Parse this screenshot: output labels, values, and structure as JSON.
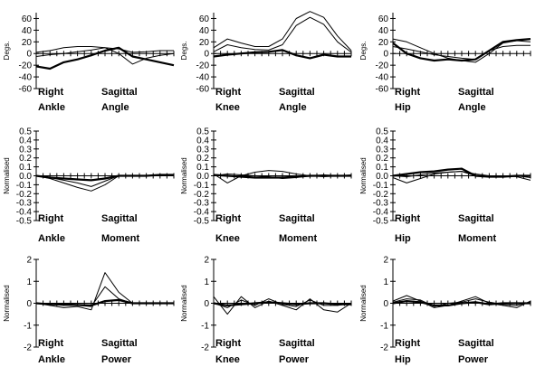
{
  "colors": {
    "background": "#ffffff",
    "line": "#000000"
  },
  "chart_data": [
    {
      "type": "line",
      "ylabel": "Degs.",
      "ylim": [
        -60,
        70
      ],
      "yticks": [
        "60",
        "40",
        "20",
        "0",
        "-20",
        "-40",
        "-60"
      ],
      "ytick_values": [
        60,
        40,
        20,
        0,
        -20,
        -40,
        -60
      ],
      "caption": [
        "Right",
        "Sagittal",
        "Ankle",
        "Angle"
      ],
      "x": [
        0,
        10,
        20,
        30,
        40,
        50,
        60,
        70,
        80,
        90,
        100
      ],
      "series": [
        {
          "values": [
            -22,
            -26,
            -15,
            -10,
            -3,
            5,
            10,
            -5,
            -10,
            -15,
            -20
          ],
          "weight": "bold"
        },
        {
          "values": [
            2,
            5,
            10,
            12,
            12,
            10,
            0,
            -18,
            -8,
            -3,
            0
          ],
          "weight": "thin"
        },
        {
          "values": [
            -5,
            -2,
            0,
            3,
            6,
            10,
            8,
            2,
            3,
            5,
            5
          ],
          "weight": "thin"
        }
      ]
    },
    {
      "type": "line",
      "ylabel": "Degs.",
      "ylim": [
        -60,
        70
      ],
      "yticks": [
        "60",
        "40",
        "20",
        "0",
        "-20",
        "-40",
        "-60"
      ],
      "ytick_values": [
        60,
        40,
        20,
        0,
        -20,
        -40,
        -60
      ],
      "caption": [
        "Right",
        "Sagittal",
        "Knee",
        "Angle"
      ],
      "x": [
        0,
        10,
        20,
        30,
        40,
        50,
        60,
        70,
        80,
        90,
        100
      ],
      "series": [
        {
          "values": [
            -5,
            -2,
            0,
            2,
            3,
            6,
            -3,
            -8,
            -2,
            -5,
            -5
          ],
          "weight": "bold"
        },
        {
          "values": [
            10,
            25,
            18,
            12,
            12,
            25,
            60,
            72,
            62,
            30,
            5
          ],
          "weight": "thin"
        },
        {
          "values": [
            3,
            15,
            10,
            7,
            6,
            15,
            48,
            62,
            50,
            20,
            2
          ],
          "weight": "thin"
        }
      ]
    },
    {
      "type": "line",
      "ylabel": "Degs.",
      "ylim": [
        -60,
        70
      ],
      "yticks": [
        "60",
        "40",
        "20",
        "0",
        "-20",
        "-40",
        "-60"
      ],
      "ytick_values": [
        60,
        40,
        20,
        0,
        -20,
        -40,
        -60
      ],
      "caption": [
        "Right",
        "Sagittal",
        "Hip",
        "Angle"
      ],
      "x": [
        0,
        10,
        20,
        30,
        40,
        50,
        60,
        70,
        80,
        90,
        100
      ],
      "series": [
        {
          "values": [
            18,
            0,
            -8,
            -12,
            -10,
            -12,
            -10,
            5,
            20,
            23,
            25
          ],
          "weight": "bold"
        },
        {
          "values": [
            25,
            20,
            10,
            0,
            -8,
            -12,
            -15,
            0,
            18,
            22,
            20
          ],
          "weight": "thin"
        },
        {
          "values": [
            12,
            8,
            3,
            -2,
            -5,
            -8,
            -10,
            5,
            12,
            14,
            14
          ],
          "weight": "thin"
        }
      ]
    },
    {
      "type": "line",
      "ylabel": "Normalised",
      "ylim": [
        -0.5,
        0.5
      ],
      "yticks": [
        "0.5",
        "0.4",
        "0.3",
        "0.2",
        "0.1",
        "0.0",
        "-0.1",
        "-0.2",
        "-0.3",
        "-0.4",
        "-0.5"
      ],
      "ytick_values": [
        0.5,
        0.4,
        0.3,
        0.2,
        0.1,
        0.0,
        -0.1,
        -0.2,
        -0.3,
        -0.4,
        -0.5
      ],
      "caption": [
        "Right",
        "Sagittal",
        "Ankle",
        "Moment"
      ],
      "x": [
        0,
        10,
        20,
        30,
        40,
        50,
        60,
        70,
        80,
        90,
        100
      ],
      "series": [
        {
          "values": [
            0,
            -0.02,
            -0.03,
            -0.04,
            -0.05,
            -0.03,
            0.0,
            0.0,
            0.0,
            0.01,
            0.01
          ],
          "weight": "bold"
        },
        {
          "values": [
            0,
            -0.03,
            -0.08,
            -0.13,
            -0.17,
            -0.1,
            0.0,
            0.0,
            0.0,
            0.0,
            0.0
          ],
          "weight": "thin"
        },
        {
          "values": [
            0,
            -0.02,
            -0.05,
            -0.08,
            -0.12,
            -0.06,
            0.0,
            0.0,
            0.0,
            0.0,
            0.0
          ],
          "weight": "thin"
        }
      ]
    },
    {
      "type": "line",
      "ylabel": "Normalised",
      "ylim": [
        -0.5,
        0.5
      ],
      "yticks": [
        "0.5",
        "0.4",
        "0.3",
        "0.2",
        "0.1",
        "0.0",
        "-0.1",
        "-0.2",
        "-0.3",
        "-0.4",
        "-0.5"
      ],
      "ytick_values": [
        0.5,
        0.4,
        0.3,
        0.2,
        0.1,
        0.0,
        -0.1,
        -0.2,
        -0.3,
        -0.4,
        -0.5
      ],
      "caption": [
        "Right",
        "Sagittal",
        "Knee",
        "Moment"
      ],
      "x": [
        0,
        10,
        20,
        30,
        40,
        50,
        60,
        70,
        80,
        90,
        100
      ],
      "series": [
        {
          "values": [
            0.01,
            0.0,
            -0.01,
            -0.02,
            -0.02,
            -0.02,
            -0.01,
            0.0,
            0.0,
            0.0,
            0.0
          ],
          "weight": "bold"
        },
        {
          "values": [
            0.02,
            -0.08,
            0.0,
            0.04,
            0.06,
            0.05,
            0.02,
            0.0,
            -0.01,
            0.0,
            0.01
          ],
          "weight": "thin"
        },
        {
          "values": [
            0,
            0.02,
            0.01,
            0.0,
            -0.01,
            -0.03,
            -0.02,
            0.0,
            0.01,
            0.0,
            0.0
          ],
          "weight": "thin"
        }
      ]
    },
    {
      "type": "line",
      "ylabel": "Normalised",
      "ylim": [
        -0.5,
        0.5
      ],
      "yticks": [
        "0.5",
        "0.4",
        "0.3",
        "0.2",
        "0.1",
        "0.0",
        "-0.1",
        "-0.2",
        "-0.3",
        "-0.4",
        "-0.5"
      ],
      "ytick_values": [
        0.5,
        0.4,
        0.3,
        0.2,
        0.1,
        0.0,
        -0.1,
        -0.2,
        -0.3,
        -0.4,
        -0.5
      ],
      "caption": [
        "Right",
        "Sagittal",
        "Hip",
        "Moment"
      ],
      "x": [
        0,
        10,
        20,
        30,
        40,
        50,
        60,
        70,
        80,
        90,
        100
      ],
      "series": [
        {
          "values": [
            0.0,
            0.02,
            0.04,
            0.05,
            0.07,
            0.08,
            0.0,
            -0.01,
            -0.01,
            0.0,
            0.0
          ],
          "weight": "bold"
        },
        {
          "values": [
            -0.02,
            -0.08,
            -0.03,
            0.02,
            0.04,
            0.05,
            0.02,
            0.0,
            0.0,
            0.0,
            -0.02
          ],
          "weight": "thin"
        },
        {
          "values": [
            0.0,
            -0.01,
            0.01,
            0.03,
            0.04,
            0.05,
            0.0,
            0.0,
            0.0,
            -0.01,
            -0.05
          ],
          "weight": "thin"
        }
      ]
    },
    {
      "type": "line",
      "ylabel": "Normalised",
      "ylim": [
        -2,
        2
      ],
      "yticks": [
        "2",
        "1",
        "0",
        "-1",
        "-2"
      ],
      "ytick_values": [
        2,
        1,
        0,
        -1,
        -2
      ],
      "caption": [
        "Right",
        "Sagittal",
        "Ankle",
        "Power"
      ],
      "x": [
        0,
        10,
        20,
        30,
        40,
        50,
        60,
        70,
        80,
        90,
        100
      ],
      "series": [
        {
          "values": [
            0,
            -0.05,
            -0.05,
            -0.08,
            -0.1,
            0.1,
            0.15,
            0.0,
            0.0,
            0.0,
            0.0
          ],
          "weight": "bold"
        },
        {
          "values": [
            0,
            -0.1,
            -0.2,
            -0.15,
            -0.3,
            1.4,
            0.5,
            0.0,
            0.0,
            0.0,
            0.0
          ],
          "weight": "thin"
        },
        {
          "values": [
            0,
            -0.05,
            -0.1,
            -0.1,
            -0.15,
            0.75,
            0.2,
            0.0,
            0.0,
            0.0,
            0.0
          ],
          "weight": "thin"
        }
      ]
    },
    {
      "type": "line",
      "ylabel": "Normalised",
      "ylim": [
        -2,
        2
      ],
      "yticks": [
        "2",
        "1",
        "0",
        "-1",
        "-2"
      ],
      "ytick_values": [
        2,
        1,
        0,
        -1,
        -2
      ],
      "caption": [
        "Right",
        "Sagittal",
        "Knee",
        "Power"
      ],
      "x": [
        0,
        10,
        20,
        30,
        40,
        50,
        60,
        70,
        80,
        90,
        100
      ],
      "series": [
        {
          "values": [
            0,
            -0.1,
            -0.05,
            0.0,
            0.05,
            0.0,
            -0.05,
            0.0,
            0.0,
            -0.05,
            -0.05
          ],
          "weight": "bold"
        },
        {
          "values": [
            0.3,
            -0.5,
            0.3,
            -0.2,
            0.1,
            -0.1,
            -0.3,
            0.2,
            -0.3,
            -0.4,
            0.0
          ],
          "weight": "thin"
        },
        {
          "values": [
            0,
            -0.2,
            0.15,
            -0.1,
            0.2,
            -0.05,
            -0.15,
            0.15,
            -0.1,
            -0.1,
            0.0
          ],
          "weight": "thin"
        }
      ]
    },
    {
      "type": "line",
      "ylabel": "Normalised",
      "ylim": [
        -2,
        2
      ],
      "yticks": [
        "2",
        "1",
        "0",
        "-1",
        "-2"
      ],
      "ytick_values": [
        2,
        1,
        0,
        -1,
        -2
      ],
      "caption": [
        "Right",
        "Sagittal",
        "Hip",
        "Power"
      ],
      "x": [
        0,
        10,
        20,
        30,
        40,
        50,
        60,
        70,
        80,
        90,
        100
      ],
      "series": [
        {
          "values": [
            0,
            0.1,
            0.05,
            -0.1,
            -0.1,
            0.0,
            0.05,
            -0.05,
            0.0,
            0.0,
            0.0
          ],
          "weight": "bold"
        },
        {
          "values": [
            0.1,
            0.35,
            0.1,
            -0.2,
            -0.1,
            0.1,
            0.3,
            0.0,
            -0.1,
            -0.2,
            0.1
          ],
          "weight": "thin"
        },
        {
          "values": [
            0.05,
            0.2,
            0.15,
            -0.15,
            0.0,
            0.05,
            0.2,
            0.05,
            -0.05,
            -0.1,
            0.05
          ],
          "weight": "thin"
        }
      ]
    }
  ]
}
